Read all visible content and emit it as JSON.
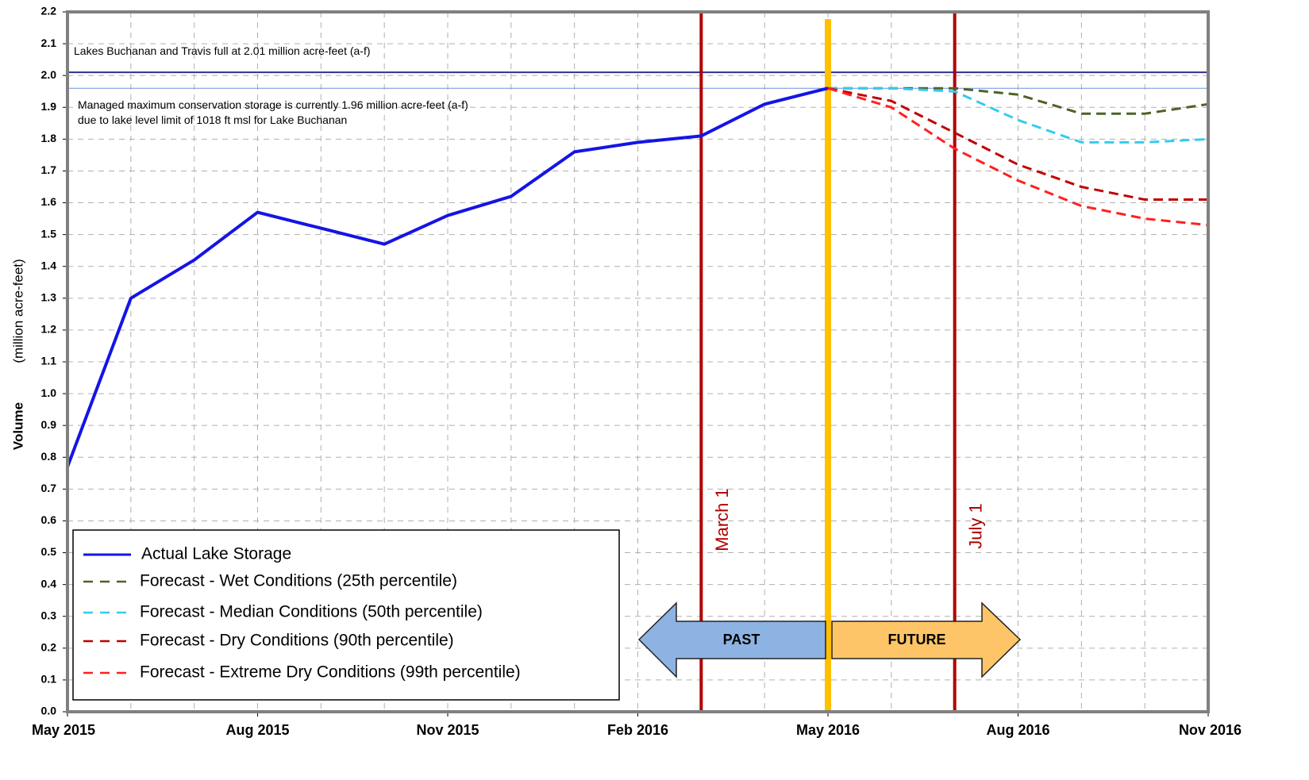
{
  "chart_data": {
    "type": "line",
    "ylabel": "Volume",
    "ylabel_units": "(million acre-feet)",
    "x": [
      "2015-05",
      "2015-06",
      "2015-07",
      "2015-08",
      "2015-09",
      "2015-10",
      "2015-11",
      "2015-12",
      "2016-01",
      "2016-02",
      "2016-03",
      "2016-04",
      "2016-05",
      "2016-06",
      "2016-07",
      "2016-08",
      "2016-09",
      "2016-10",
      "2016-11"
    ],
    "xlim": [
      "2015-05",
      "2016-11"
    ],
    "xticks": [
      {
        "value": "2015-05",
        "label": "May 2015"
      },
      {
        "value": "2015-08",
        "label": "Aug 2015"
      },
      {
        "value": "2015-11",
        "label": "Nov 2015"
      },
      {
        "value": "2016-02",
        "label": "Feb 2016"
      },
      {
        "value": "2016-05",
        "label": "May 2016"
      },
      {
        "value": "2016-08",
        "label": "Aug 2016"
      },
      {
        "value": "2016-11",
        "label": "Nov 2016"
      }
    ],
    "ylim": [
      0,
      2.2
    ],
    "yticks": [
      {
        "value": 0,
        "label": "0.0"
      },
      {
        "value": 0.1,
        "label": "0.1"
      },
      {
        "value": 0.2,
        "label": "0.2"
      },
      {
        "value": 0.3,
        "label": "0.3"
      },
      {
        "value": 0.4,
        "label": "0.4"
      },
      {
        "value": 0.5,
        "label": "0.5"
      },
      {
        "value": 0.6,
        "label": "0.6"
      },
      {
        "value": 0.7,
        "label": "0.7"
      },
      {
        "value": 0.8,
        "label": "0.8"
      },
      {
        "value": 0.9,
        "label": "0.9"
      },
      {
        "value": 1,
        "label": "1.0"
      },
      {
        "value": 1.1,
        "label": "1.1"
      },
      {
        "value": 1.2,
        "label": "1.2"
      },
      {
        "value": 1.3,
        "label": "1.3"
      },
      {
        "value": 1.4,
        "label": "1.4"
      },
      {
        "value": 1.5,
        "label": "1.5"
      },
      {
        "value": 1.6,
        "label": "1.6"
      },
      {
        "value": 1.7,
        "label": "1.7"
      },
      {
        "value": 1.8,
        "label": "1.8"
      },
      {
        "value": 1.9,
        "label": "1.9"
      },
      {
        "value": 2,
        "label": "2.0"
      },
      {
        "value": 2.1,
        "label": "2.1"
      },
      {
        "value": 2.2,
        "label": "2.2"
      }
    ],
    "grid": true,
    "legend": "lower left",
    "series": [
      {
        "name": "Actual Lake Storage",
        "color": "#1414e6",
        "dashed": false,
        "values": [
          0.77,
          1.3,
          1.42,
          1.57,
          1.52,
          1.47,
          1.56,
          1.62,
          1.76,
          1.79,
          1.81,
          1.91,
          1.96,
          null,
          null,
          null,
          null,
          null,
          null
        ]
      },
      {
        "name": "Forecast - Wet Conditions (25th percentile)",
        "color": "#4f6228",
        "dashed": true,
        "values": [
          null,
          null,
          null,
          null,
          null,
          null,
          null,
          null,
          null,
          null,
          null,
          null,
          1.96,
          1.96,
          1.96,
          1.94,
          1.88,
          1.88,
          1.91
        ]
      },
      {
        "name": "Forecast - Median Conditions (50th percentile)",
        "color": "#33ccee",
        "dashed": true,
        "values": [
          null,
          null,
          null,
          null,
          null,
          null,
          null,
          null,
          null,
          null,
          null,
          null,
          1.96,
          1.96,
          1.95,
          1.86,
          1.79,
          1.79,
          1.8
        ]
      },
      {
        "name": "Forecast - Dry Conditions (90th percentile)",
        "color": "#c00000",
        "dashed": true,
        "values": [
          null,
          null,
          null,
          null,
          null,
          null,
          null,
          null,
          null,
          null,
          null,
          null,
          1.96,
          1.92,
          1.82,
          1.72,
          1.65,
          1.61,
          1.61
        ]
      },
      {
        "name": "Forecast - Extreme Dry Conditions (99th percentile)",
        "color": "#ff2020",
        "dashed": true,
        "values": [
          null,
          null,
          null,
          null,
          null,
          null,
          null,
          null,
          null,
          null,
          null,
          null,
          1.96,
          1.9,
          1.77,
          1.67,
          1.59,
          1.55,
          1.53
        ]
      }
    ],
    "hlines": [
      {
        "value": 2.01,
        "color": "#2e3192",
        "label": [
          "Lakes Buchanan and Travis full at 2.01 million acre-feet (a-f)"
        ]
      },
      {
        "value": 1.96,
        "color": "#6f8fdf",
        "label": [
          "Managed maximum conservation storage is currently 1.96 million acre-feet (a-f)",
          "due to lake level limit of 1018 ft msl for Lake Buchanan"
        ]
      }
    ],
    "vlines": [
      {
        "x": "2016-03",
        "color": "#b00000",
        "label": "March 1"
      },
      {
        "x": "2016-05",
        "color": "#ffc000"
      },
      {
        "x": "2016-07",
        "color": "#b00000",
        "label": "July 1"
      }
    ],
    "arrows": [
      {
        "label": "PAST",
        "color": "#8db3e2",
        "direction": "left"
      },
      {
        "label": "FUTURE",
        "color": "#fdc567",
        "direction": "right"
      }
    ]
  }
}
